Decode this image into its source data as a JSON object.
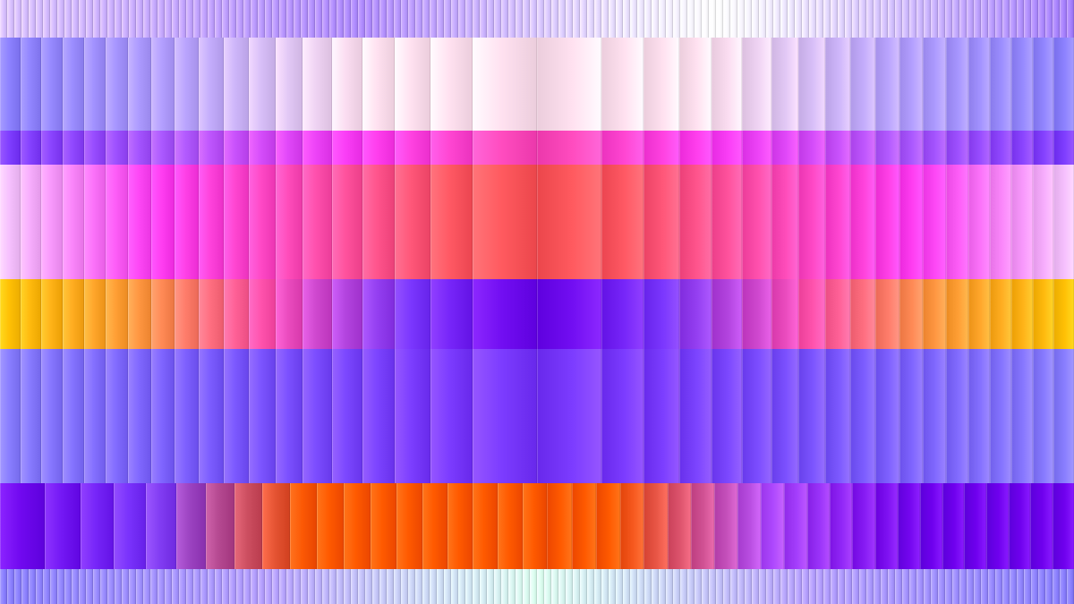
{
  "artwork": {
    "name": "glitch-stripes-abstract",
    "palette": {
      "deep_violet": "#6f00ee",
      "violet": "#7c3cff",
      "periwinkle": "#8a80ff",
      "lavender": "#cdb7ff",
      "pale_pink": "#ffe1f0",
      "magenta": "#ff3cf5",
      "pink": "#ff4fb3",
      "coral": "#ff5a5f",
      "salmon": "#ff7d86",
      "orange": "#ff5a00",
      "gold": "#ffc300",
      "cream": "#ffe7b5",
      "mint": "#dcfff0",
      "olive": "#8a7a6b"
    },
    "bands": [
      {
        "name": "top-fine-stripes",
        "pattern": "fine",
        "colors": [
          "#d9c2ff",
          "#b08cff",
          "#ffffff",
          "#a680ff"
        ]
      },
      {
        "name": "upper-pink-panel",
        "pattern": "mirror",
        "colors": [
          "#8a80ff",
          "#b7a2ff",
          "#ffe1f0",
          "#ffe1f0",
          "#ffe1f0",
          "#b7a2ff",
          "#8a80ff"
        ]
      },
      {
        "name": "magenta-thin-band",
        "pattern": "mirror",
        "colors": [
          "#7c3cff",
          "#b05cff",
          "#ff3cf5",
          "#ff4fb3",
          "#ff3cf5",
          "#b05cff",
          "#7c3cff"
        ]
      },
      {
        "name": "coral-center-band",
        "pattern": "mirror",
        "colors": [
          "#f5c9ff",
          "#ff3cf5",
          "#ff4fb3",
          "#ff5a5f",
          "#ff5a5f",
          "#ff4fb3",
          "#ff3cf5",
          "#f5c9ff"
        ]
      },
      {
        "name": "gold-violet-band",
        "pattern": "mirror",
        "colors": [
          "#ffc300",
          "#ff9a3d",
          "#ff4fb3",
          "#7c3cff",
          "#6f00ee",
          "#7c3cff",
          "#ff4fb3",
          "#ff9a3d",
          "#ffc300"
        ]
      },
      {
        "name": "periwinkle-panel",
        "pattern": "mirror",
        "colors": [
          "#8a80ff",
          "#7c5cff",
          "#7c3cff",
          "#7c3cff",
          "#7c5cff",
          "#8a80ff"
        ]
      },
      {
        "name": "orange-violet-band",
        "pattern": "skewed",
        "colors": [
          "#6f00ee",
          "#7c3cff",
          "#ff5a00",
          "#ff5a00",
          "#ff5a00",
          "#b04cff",
          "#6f00ee",
          "#6f00ee"
        ]
      },
      {
        "name": "bottom-fine-stripes",
        "pattern": "fine",
        "colors": [
          "#8a80ff",
          "#b7a2ff",
          "#dcfff0",
          "#b7a2ff",
          "#8a80ff"
        ]
      }
    ]
  }
}
